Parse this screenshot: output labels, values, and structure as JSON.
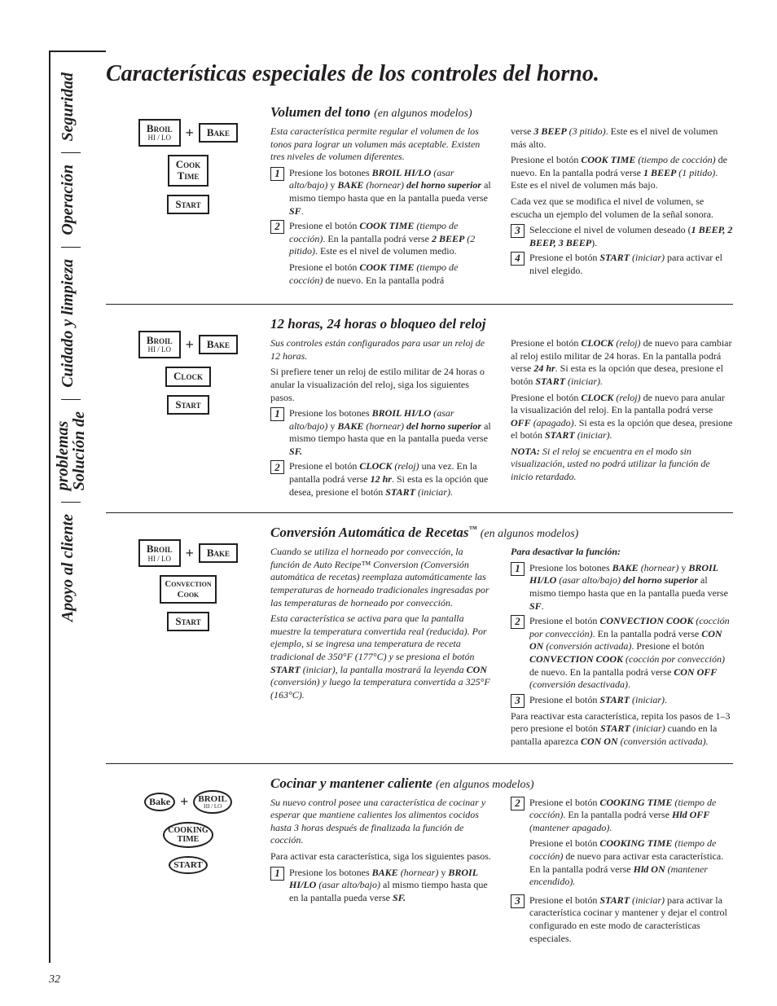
{
  "page": {
    "title": "Características especiales de los controles del horno.",
    "page_number": "32"
  },
  "tabs": {
    "t1": "Seguridad",
    "t2": "Operación",
    "t3": "Cuidado y limpieza",
    "t4a": "Solución de",
    "t4b": "problemas",
    "t5": "Apoyo al cliente"
  },
  "buttons": {
    "broil": "Broil",
    "hilo": "HI / LO",
    "bake": "Bake",
    "cook_time": "Cook",
    "cook_time2": "Time",
    "cooking": "Cooking",
    "time": "Time",
    "start": "Start",
    "start_oval": "START",
    "clock": "Clock",
    "conv": "Convection",
    "cook": "Cook",
    "plus": "+"
  },
  "sec1": {
    "title": "Volumen del tono",
    "sub": "(en algunos modelos)",
    "intro": "Esta característica permite regular el volumen de los tonos para lograr un volumen más aceptable. Existen tres niveles de volumen diferentes.",
    "s1a": "Presione los botones ",
    "s1b": "BROIL HI/LO",
    "s1c": " (asar alto/bajo)",
    "s1d": " y ",
    "s1e": "BAKE",
    "s1f": " (hornear) ",
    "s1g": "del horno superior",
    "s1h": " al mismo tiempo hasta que en la pantalla pueda verse ",
    "s1i": "SF",
    "s1j": ".",
    "s2a": "Presione el botón ",
    "s2b": "COOK TIME",
    "s2c": " (tiempo de cocción)",
    "s2d": ". En la pantalla podrá verse ",
    "s2e": "2 BEEP",
    "s2f": " (2 pitido)",
    "s2g": ". Este es el nivel de volumen medio.",
    "s2h": "Presione el botón ",
    "s2i": "COOK TIME",
    "s2j": " (tiempo de cocción)",
    "s2k": " de nuevo. En la pantalla podrá",
    "r1a": "verse ",
    "r1b": "3 BEEP",
    "r1c": " (3 pitido)",
    "r1d": ". Este es el nivel de volumen más alto.",
    "r2a": "Presione el botón ",
    "r2b": "COOK TIME",
    "r2c": " (tiempo de cocción)",
    "r2d": " de nuevo. En la pantalla podrá verse ",
    "r2e": "1 BEEP",
    "r2f": " (1 pitido)",
    "r2g": ". Este es el nivel de volumen más bajo.",
    "r3": "Cada vez que se modifica el nivel de volumen, se escucha un ejemplo del volumen de la señal sonora.",
    "s3a": "Seleccione el nivel de volumen deseado (",
    "s3b": "1 BEEP, 2 BEEP, 3 BEEP",
    "s3c": ").",
    "s4a": "Presione el botón ",
    "s4b": "START",
    "s4c": " (iniciar)",
    "s4d": " para activar el nivel elegido."
  },
  "sec2": {
    "title": "12 horas, 24 horas o bloqueo del reloj",
    "intro1": "Sus controles están configurados para usar un reloj de 12 horas.",
    "intro2": "Si prefiere tener un reloj de estilo militar de 24 horas o anular la visualización del reloj, siga los siguientes pasos.",
    "s1a": "Presione los botones ",
    "s1b": "BROIL HI/LO",
    "s1c": " (asar alto/bajo)",
    "s1d": " y ",
    "s1e": "BAKE",
    "s1f": " (hornear) ",
    "s1g": "del horno superior",
    "s1h": " al mismo tiempo hasta que en la pantalla pueda verse ",
    "s1i": "SF.",
    "s2a": "Presione el botón ",
    "s2b": "CLOCK",
    "s2c": " (reloj)",
    "s2d": " una vez. En la pantalla podrá verse ",
    "s2e": "12 hr",
    "s2f": ". Si esta es la opción que desea, presione el botón ",
    "s2g": "START",
    "s2h": " (iniciar).",
    "r1a": "Presione el botón ",
    "r1b": "CLOCK",
    "r1c": " (reloj)",
    "r1d": " de nuevo para cambiar al reloj estilo militar de 24 horas. En la pantalla podrá verse ",
    "r1e": "24 hr",
    "r1f": ". Si esta es la opción que desea, presione el botón ",
    "r1g": "START",
    "r1h": " (iniciar).",
    "r2a": "Presione el botón ",
    "r2b": "CLOCK",
    "r2c": " (reloj)",
    "r2d": " de nuevo para anular la visualización del reloj. En la pantalla podrá verse ",
    "r2e": "OFF",
    "r2f": " (apagado)",
    "r2g": ". Si esta es la opción que desea, presione el botón ",
    "r2h": "START",
    "r2i": " (iniciar).",
    "note1": "NOTA:",
    "note2": " Si el reloj se encuentra en el modo sin visualización, usted no podrá utilizar la función de inicio retardado."
  },
  "sec3": {
    "title": "Conversión Automática de Recetas",
    "tm": "™",
    "sub": "(en algunos modelos)",
    "l1a": "Cuando se utiliza el horneado por convección, la función de Auto Recipe™ Conversion (Conversión automática de recetas) reemplaza automáticamente las temperaturas de horneado tradicionales ingresadas por las temperaturas de horneado por convección.",
    "l2a": "Esta característica se activa para que la pantalla muestre la temperatura convertida real (reducida). Por ejemplo, si se ingresa una temperatura de receta tradicional de 350°F (177°C) y se presiona el botón ",
    "l2b": "START",
    "l2c": " (iniciar), la pantalla mostrará la leyenda ",
    "l2d": "CON",
    "l2e": " (conversión) y luego la temperatura convertida a 325°F (163°C).",
    "rh": "Para desactivar la función:",
    "s1a": "Presione los botones ",
    "s1b": "BAKE",
    "s1c": " (hornear)",
    "s1d": " y ",
    "s1e": "BROIL HI/LO",
    "s1f": " (asar alto/bajo) ",
    "s1g": "del horno superior",
    "s1h": " al mismo tiempo hasta que en la pantalla pueda verse ",
    "s1i": "SF",
    "s1j": ".",
    "s2a": "Presione el botón ",
    "s2b": "CONVECTION COOK",
    "s2c": " (cocción por convección)",
    "s2d": ". En la pantalla podrá verse ",
    "s2e": "CON ON",
    "s2f": " (conversión activada)",
    "s2g": ". Presione el botón ",
    "s2h": "CONVECTION COOK",
    "s2i": " (cocción por convección)",
    "s2j": " de nuevo. En la pantalla podrá verse ",
    "s2k": "CON OFF",
    "s2l": " (conversión desactivada)",
    "s2m": ".",
    "s3a": "Presione el botón ",
    "s3b": "START",
    "s3c": " (iniciar)",
    "s3d": ".",
    "foot1": "Para reactivar esta característica, repita los pasos de 1–3 pero presione el botón ",
    "foot2": "START",
    "foot3": " (iniciar)",
    "foot4": " cuando en la pantalla aparezca ",
    "foot5": "CON ON",
    "foot6": " (conversión activada)."
  },
  "sec4": {
    "title": "Cocinar y mantener caliente",
    "sub": "(en algunos modelos)",
    "l1": "Su nuevo control posee una característica de cocinar y esperar que mantiene calientes los alimentos cocidos hasta 3 horas después de finalizada la función de cocción.",
    "l2": "Para activar esta característica, siga los siguientes pasos.",
    "s1a": "Presione los botones ",
    "s1b": "BAKE",
    "s1c": " (hornear)",
    "s1d": " y ",
    "s1e": "BROIL HI/LO",
    "s1f": " (asar alto/bajo)",
    "s1g": " al mismo tiempo hasta que en la pantalla pueda verse ",
    "s1h": "SF.",
    "s2a": "Presione el botón ",
    "s2b": "COOKING TIME",
    "s2c": " (tiempo de cocción)",
    "s2d": ". En la pantalla podrá verse ",
    "s2e": "Hld OFF",
    "s2f": " (mantener apagado).",
    "s2g": "Presione el botón ",
    "s2h": "COOKING TIME",
    "s2i": " (tiempo de cocción)",
    "s2j": " de nuevo para activar esta característica. En la pantalla podrá verse ",
    "s2k": "Hld ON",
    "s2l": " (mantener encendido).",
    "s3a": "Presione el botón ",
    "s3b": "START",
    "s3c": " (iniciar)",
    "s3d": " para activar la característica cocinar y mantener y dejar el control configurado en este modo de características especiales."
  }
}
